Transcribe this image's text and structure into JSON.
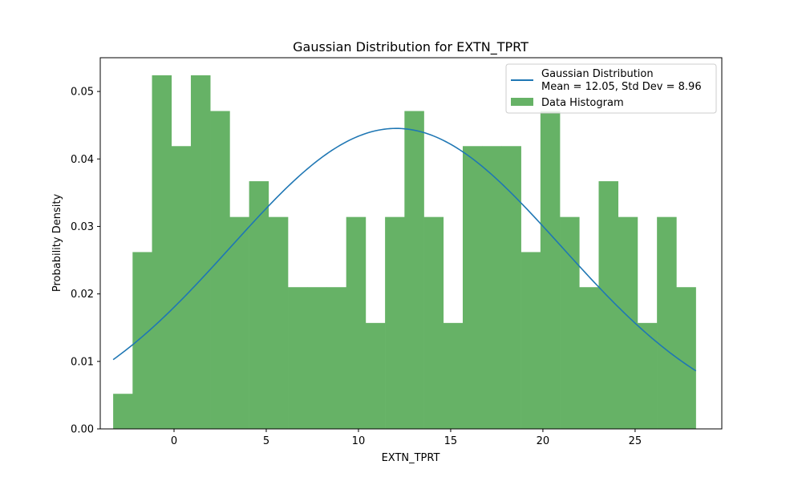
{
  "chart_data": {
    "type": "bar",
    "title": "Gaussian Distribution for EXTN_TPRT",
    "xlabel": "EXTN_TPRT",
    "ylabel": "Probability Density",
    "xlim": [
      -4.0,
      29.7
    ],
    "ylim": [
      0.0,
      0.055
    ],
    "xticks": [
      0,
      5,
      10,
      15,
      20,
      25
    ],
    "xtick_labels": [
      "0",
      "5",
      "10",
      "15",
      "20",
      "25"
    ],
    "yticks": [
      0.0,
      0.01,
      0.02,
      0.03,
      0.04,
      0.05
    ],
    "ytick_labels": [
      "0.00",
      "0.01",
      "0.02",
      "0.03",
      "0.04",
      "0.05"
    ],
    "grid": false,
    "legend_position": "top-right",
    "histogram": {
      "name": "Data Histogram",
      "color": "#66b266",
      "bin_start": -3.3,
      "bin_width": 1.053,
      "values": [
        0.0052,
        0.0262,
        0.0524,
        0.0419,
        0.0524,
        0.0471,
        0.0314,
        0.0367,
        0.0314,
        0.021,
        0.021,
        0.021,
        0.0314,
        0.0157,
        0.0314,
        0.0471,
        0.0314,
        0.0157,
        0.0419,
        0.0419,
        0.0419,
        0.0262,
        0.0471,
        0.0314,
        0.021,
        0.0367,
        0.0314,
        0.0157,
        0.0314,
        0.021
      ]
    },
    "gaussian": {
      "name": "Gaussian Distribution",
      "name_line2": "Mean = 12.05, Std Dev = 8.96",
      "mean": 12.05,
      "std": 8.96,
      "x_range": [
        -3.3,
        28.3
      ],
      "color": "#1f77b4"
    }
  }
}
